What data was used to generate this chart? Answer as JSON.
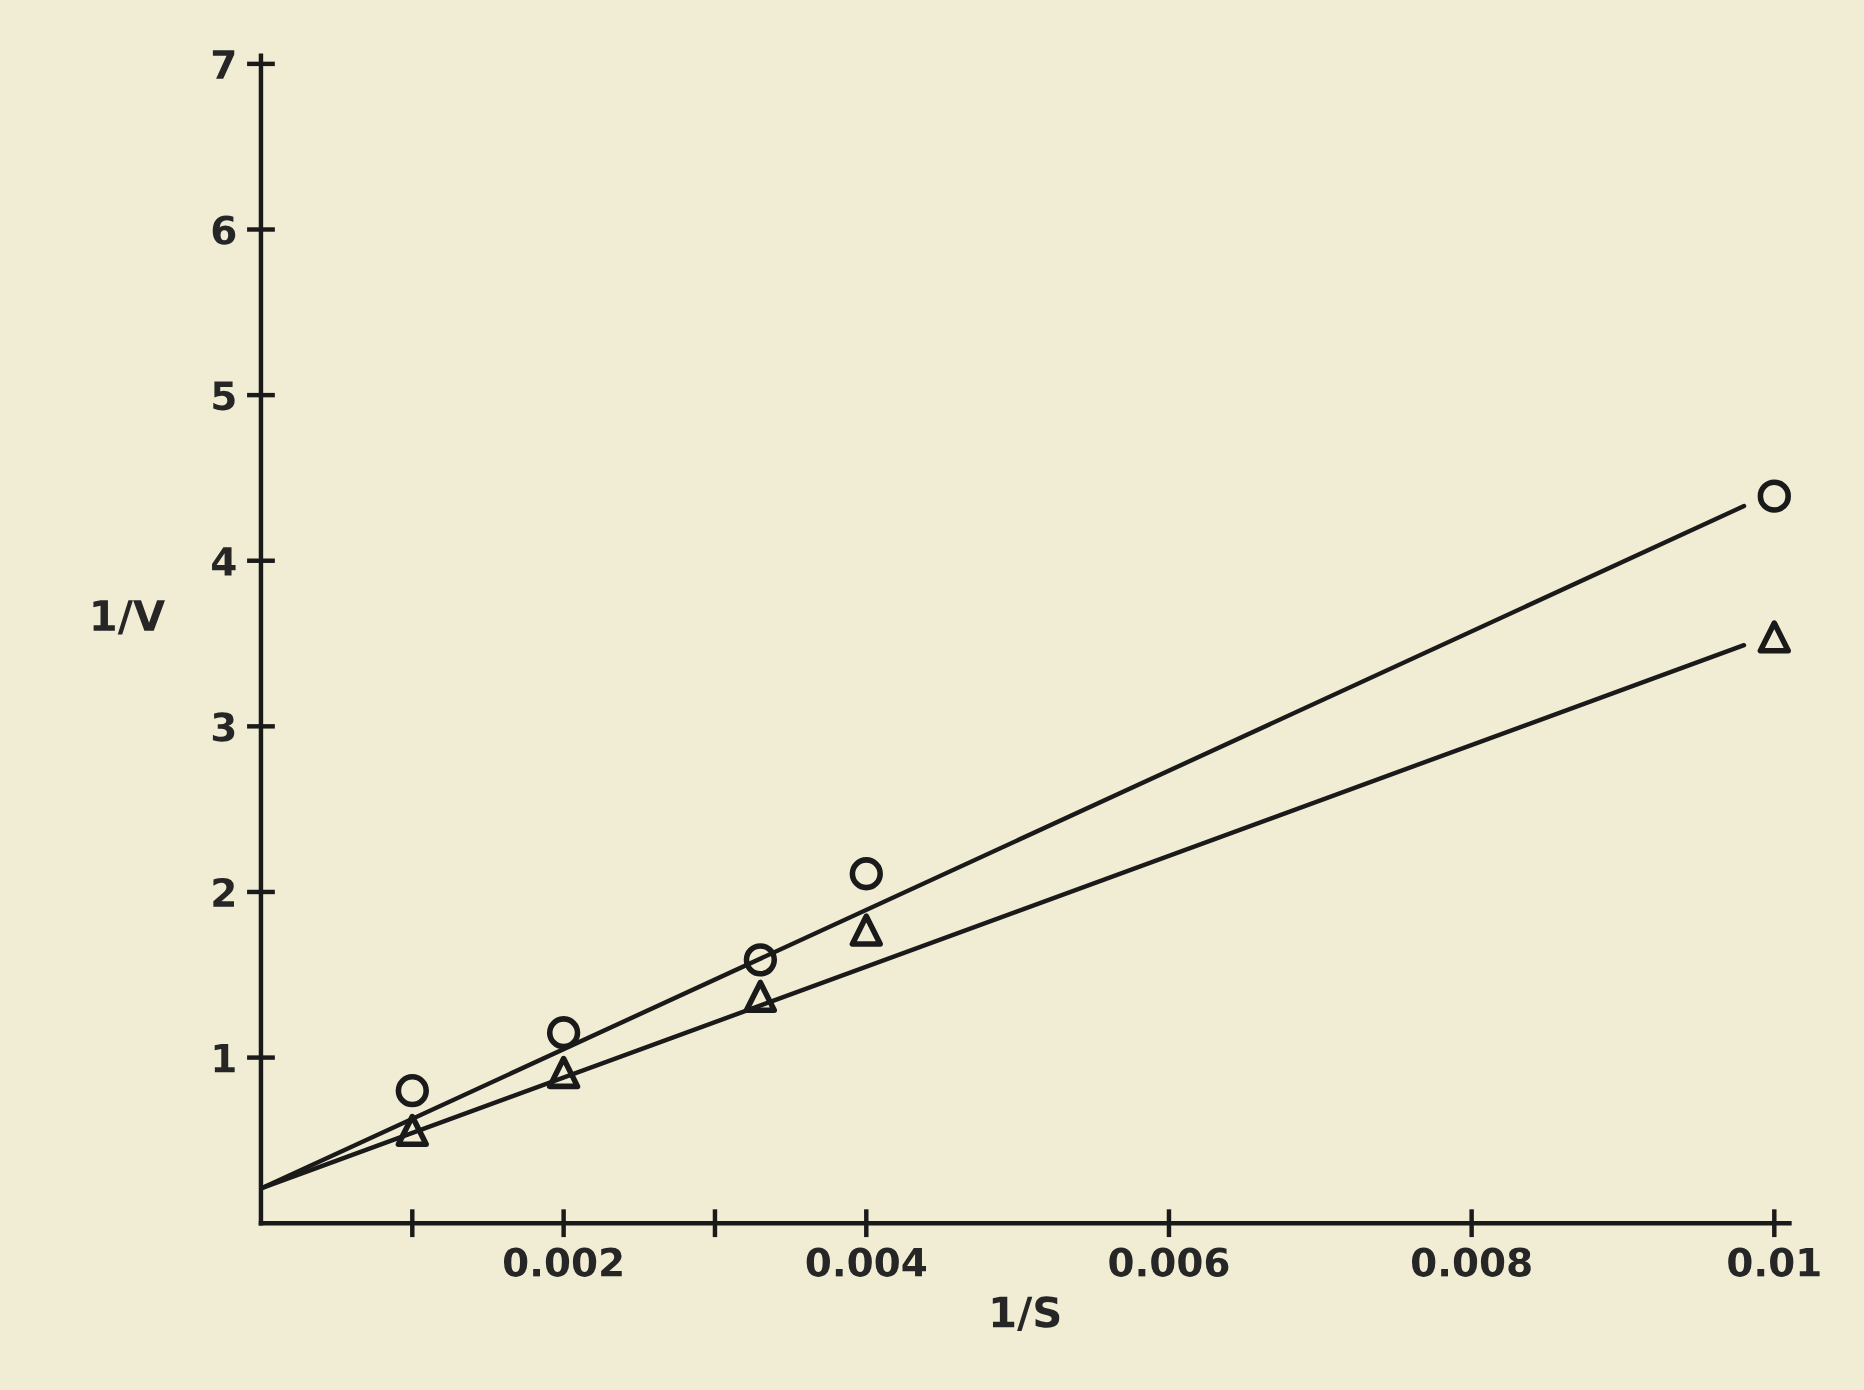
{
  "chart_data": {
    "type": "scatter",
    "xlabel": "1/S",
    "ylabel": "1/V",
    "xlim": [
      0,
      0.0101
    ],
    "ylim": [
      0,
      7.05
    ],
    "xticks": [
      {
        "value": 0.001,
        "label": null
      },
      0.002,
      {
        "value": 0.003,
        "label": null
      },
      0.004,
      0.006,
      0.008,
      0.01
    ],
    "yticks": [
      1,
      2,
      3,
      4,
      5,
      6,
      7
    ],
    "grid": false,
    "legend": false,
    "series": [
      {
        "marker": "circle",
        "color": "#1a1a1a",
        "x": [
          0.001,
          0.002,
          0.0033,
          0.004,
          0.01
        ],
        "values": [
          0.8,
          1.15,
          1.59,
          2.11,
          4.39
        ]
      },
      {
        "marker": "triangle",
        "color": "#1a1a1a",
        "x": [
          0.001,
          0.002,
          0.0033,
          0.004,
          0.01
        ],
        "values": [
          0.56,
          0.91,
          1.37,
          1.77,
          3.54
        ]
      },
      {
        "type": "line",
        "marker": "none",
        "line_style": "solid",
        "color": "#1a1a1a",
        "x": [
          0,
          0.0098
        ],
        "values": [
          0.21,
          4.33
        ]
      },
      {
        "type": "line",
        "marker": "none",
        "line_style": "solid",
        "color": "#1a1a1a",
        "x": [
          0,
          0.0098
        ],
        "values": [
          0.21,
          3.49
        ]
      }
    ]
  }
}
